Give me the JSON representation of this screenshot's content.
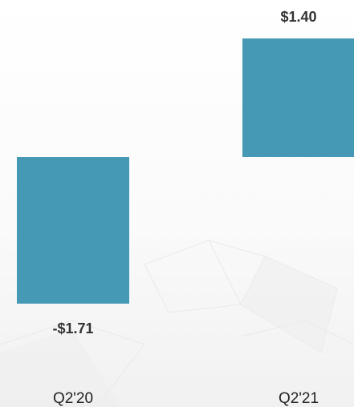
{
  "chart_data": {
    "type": "bar",
    "categories": [
      "Q2'20",
      "Q2'21"
    ],
    "values": [
      -1.71,
      1.4
    ],
    "value_labels": [
      "-$1.71",
      "$1.40"
    ],
    "bar_color": "#4599b5",
    "ylim": [
      -1.71,
      1.4
    ],
    "grid": false,
    "legend": "none"
  }
}
